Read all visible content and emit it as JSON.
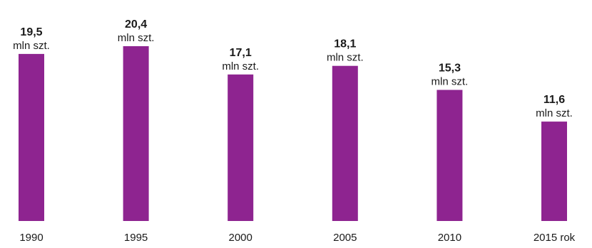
{
  "chart_data": {
    "type": "bar",
    "categories": [
      "1990",
      "1995",
      "2000",
      "2005",
      "2010",
      "2015 rok"
    ],
    "values": [
      19.5,
      20.4,
      17.1,
      18.1,
      15.3,
      11.6
    ],
    "value_labels": [
      "19,5",
      "20,4",
      "17,1",
      "18,1",
      "15,3",
      "11,6"
    ],
    "unit_label": "mln szt.",
    "title": "",
    "xlabel": "",
    "ylabel": "",
    "ylim": [
      0,
      20.4
    ],
    "grid": false,
    "bar_color": "#8e2490"
  }
}
